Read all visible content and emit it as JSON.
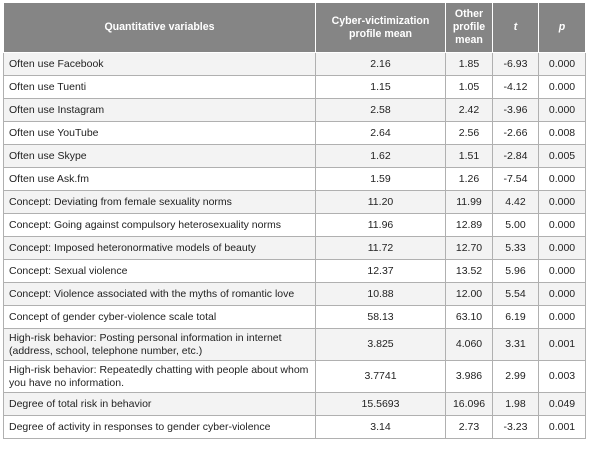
{
  "headers": [
    "Quantitative variables",
    "Cyber-victimization profile mean",
    "Other profile mean",
    "t",
    "p"
  ],
  "rows": [
    {
      "label": "Often use Facebook",
      "cv_mean": "2.16",
      "other_mean": "1.85",
      "t": "-6.93",
      "p": "0.000"
    },
    {
      "label": "Often use Tuenti",
      "cv_mean": "1.15",
      "other_mean": "1.05",
      "t": "-4.12",
      "p": "0.000"
    },
    {
      "label": "Often use Instagram",
      "cv_mean": "2.58",
      "other_mean": "2.42",
      "t": "-3.96",
      "p": "0.000"
    },
    {
      "label": "Often use YouTube",
      "cv_mean": "2.64",
      "other_mean": "2.56",
      "t": "-2.66",
      "p": "0.008"
    },
    {
      "label": "Often use Skype",
      "cv_mean": "1.62",
      "other_mean": "1.51",
      "t": "-2.84",
      "p": "0.005"
    },
    {
      "label": "Often use Ask.fm",
      "cv_mean": "1.59",
      "other_mean": "1.26",
      "t": "-7.54",
      "p": "0.000"
    },
    {
      "label": "Concept: Deviating from female sexuality norms",
      "cv_mean": "11.20",
      "other_mean": "11.99",
      "t": "4.42",
      "p": "0.000"
    },
    {
      "label": "Concept: Going against compulsory heterosexuality norms",
      "cv_mean": "11.96",
      "other_mean": "12.89",
      "t": "5.00",
      "p": "0.000"
    },
    {
      "label": "Concept: Imposed heteronormative models of beauty",
      "cv_mean": "11.72",
      "other_mean": "12.70",
      "t": "5.33",
      "p": "0.000"
    },
    {
      "label": "Concept: Sexual violence",
      "cv_mean": "12.37",
      "other_mean": "13.52",
      "t": "5.96",
      "p": "0.000"
    },
    {
      "label": "Concept: Violence associated with the myths of romantic love",
      "cv_mean": "10.88",
      "other_mean": "12.00",
      "t": "5.54",
      "p": "0.000"
    },
    {
      "label": "Concept of gender cyber-violence scale total",
      "cv_mean": "58.13",
      "other_mean": "63.10",
      "t": "6.19",
      "p": "0.000"
    },
    {
      "label": "High-risk behavior: Posting personal information in internet (address, school, telephone number, etc.)",
      "cv_mean": "3.825",
      "other_mean": "4.060",
      "t": "3.31",
      "p": "0.001"
    },
    {
      "label": "High-risk behavior: Repeatedly chatting with people about whom you have no information.",
      "cv_mean": "3.7741",
      "other_mean": "3.986",
      "t": "2.99",
      "p": "0.003"
    },
    {
      "label": "Degree of total risk in behavior",
      "cv_mean": "15.5693",
      "other_mean": "16.096",
      "t": "1.98",
      "p": "0.049"
    },
    {
      "label": "Degree of activity in responses to gender cyber-violence",
      "cv_mean": "3.14",
      "other_mean": "2.73",
      "t": "-3.23",
      "p": "0.001"
    }
  ]
}
